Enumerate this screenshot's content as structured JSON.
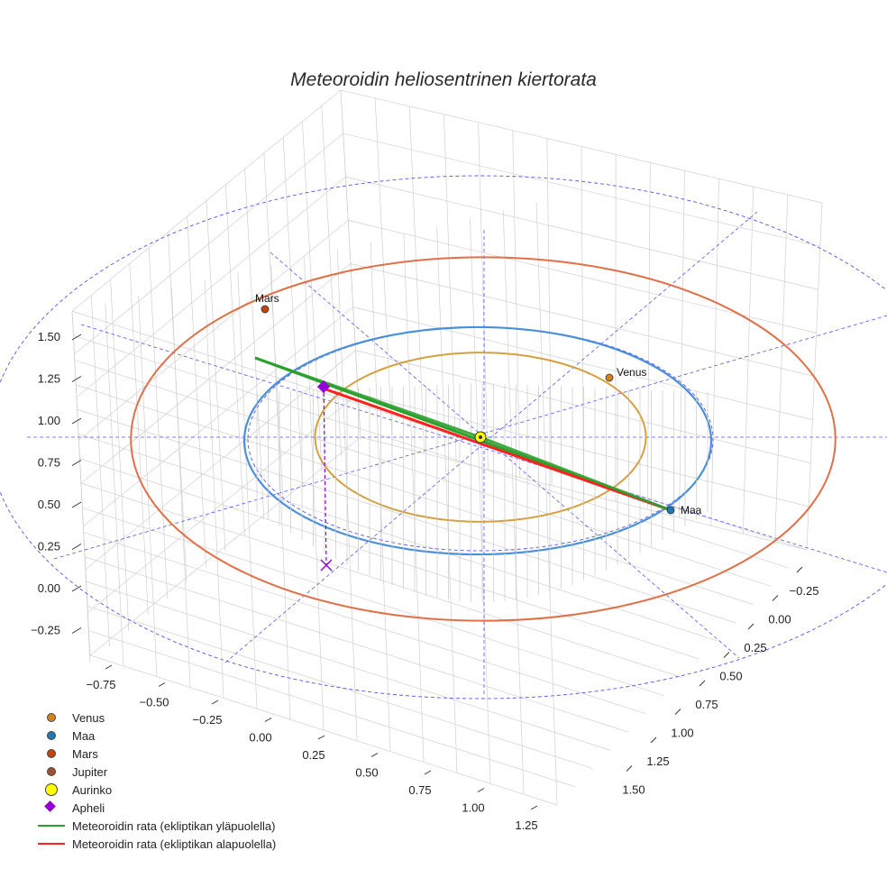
{
  "chart_data": {
    "type": "3d-orbit",
    "title": "Meteoroidin heliosentrinen kiertorata",
    "x_ticks": [
      "−0.75",
      "−0.50",
      "−0.25",
      "0.00",
      "0.25",
      "0.50",
      "0.75",
      "1.00",
      "1.25"
    ],
    "y_ticks": [
      "−0.25",
      "0.00",
      "0.25",
      "0.50",
      "0.75",
      "1.00",
      "1.25",
      "1.50"
    ],
    "z_ticks": [
      "−0.25",
      "0.00",
      "0.25",
      "0.50",
      "0.75",
      "1.00",
      "1.25",
      "1.50"
    ],
    "orbit_radii_au": {
      "venus": 0.723,
      "earth": 1.0,
      "mars": 1.524
    },
    "planets": [
      {
        "name": "Venus",
        "label": "Venus",
        "color": "#d4821e"
      },
      {
        "name": "Maa",
        "label": "Maa",
        "color": "#1f77b4"
      },
      {
        "name": "Mars",
        "label": "Mars",
        "color": "#c1440e"
      }
    ],
    "legend": [
      {
        "label": "Venus",
        "kind": "dot",
        "color": "#d4821e"
      },
      {
        "label": "Maa",
        "kind": "dot",
        "color": "#1f77b4"
      },
      {
        "label": "Mars",
        "kind": "dot",
        "color": "#c1440e"
      },
      {
        "label": "Jupiter",
        "kind": "dot",
        "color": "#a0522d"
      },
      {
        "label": "Aurinko",
        "kind": "big",
        "color": "#ffff00"
      },
      {
        "label": "Apheli",
        "kind": "diamond",
        "color": "#9400d3"
      },
      {
        "label": "Meteoroidin rata (ekliptikan yläpuolella)",
        "kind": "line",
        "color": "#2ca02c"
      },
      {
        "label": "Meteoroidin rata (ekliptikan alapuolella)",
        "kind": "line",
        "color": "#ff2020"
      }
    ],
    "colors": {
      "venus_orbit": "#d4a040",
      "earth_orbit": "#4a90d9",
      "mars_orbit": "#e07048",
      "reference": "#5555ee",
      "grid": "#d0d0d0",
      "apheli_drop": "#9400d3"
    }
  }
}
